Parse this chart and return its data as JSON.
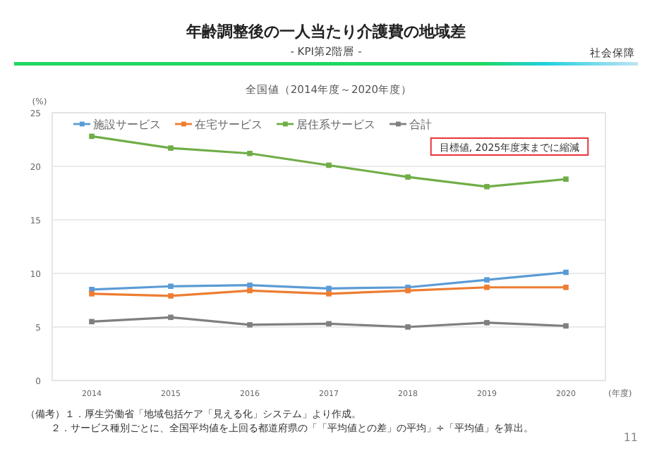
{
  "chart_data": {
    "type": "line",
    "title": "年齢調整後の一人当たり介護費の地域差",
    "subtitle": "- KPI第2階層 -",
    "ylabel": "(%)",
    "xlabel": "(年度)",
    "categories": [
      "2014",
      "2015",
      "2016",
      "2017",
      "2018",
      "2019",
      "2020"
    ],
    "series": [
      {
        "name": "施設サービス",
        "color": "#5b9bd5",
        "values": [
          8.5,
          8.8,
          8.9,
          8.6,
          8.7,
          9.4,
          10.1
        ]
      },
      {
        "name": "在宅サービス",
        "color": "#ed7d31",
        "values": [
          8.1,
          7.9,
          8.4,
          8.1,
          8.4,
          8.7,
          8.7
        ]
      },
      {
        "name": "居住系サービス",
        "color": "#70ad47",
        "values": [
          22.8,
          21.7,
          21.2,
          20.1,
          19.0,
          18.1,
          18.8
        ]
      },
      {
        "name": "合計",
        "color": "#7f7f7f",
        "values": [
          5.5,
          5.9,
          5.2,
          5.3,
          5.0,
          5.4,
          5.1
        ]
      }
    ],
    "ylim": [
      0,
      25
    ],
    "yticks": [
      0,
      5,
      10,
      15,
      20,
      25
    ],
    "grid": "y",
    "legend": "top left",
    "marker": "square",
    "line_style": "solid",
    "annotations": [
      "社会保障",
      "全国値（2014年度～2020年度）",
      "目標値, 2025年度末までに縮減",
      "（備考）１．厚生労働省「地域包括ケア「見える化」システム」より作成。",
      "２．サービス種別ごとに、全国平均値を上回る都道府県の「「平均値との差」の平均」÷「平均値」を算出。",
      "11"
    ]
  }
}
